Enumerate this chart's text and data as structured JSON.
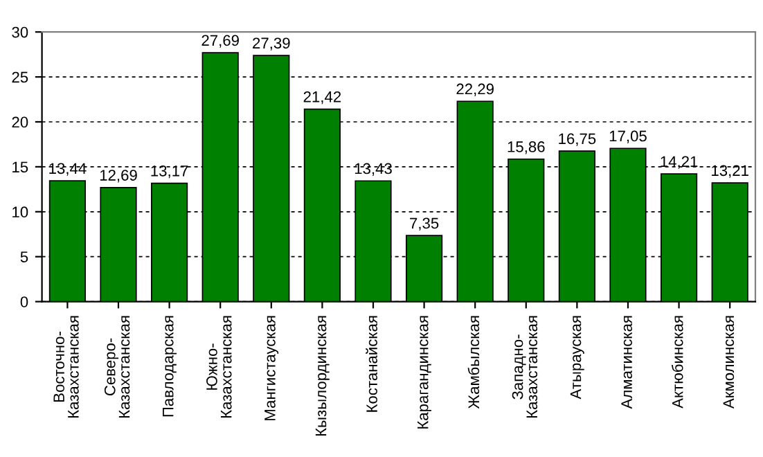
{
  "chart_data": {
    "type": "bar",
    "categories": [
      "Восточно-\nКазахстанская",
      "Северо-\nКазахстанская",
      "Павлодарская",
      "Южно-\nКазахстанская",
      "Мангистауская",
      "Кызылординская",
      "Костанайская",
      "Карагандинская",
      "Жамбылская",
      "Западно-\nКазахстанская",
      "Атырауская",
      "Алматинская",
      "Актюбинская",
      "Акмолинская"
    ],
    "values": [
      13.44,
      12.69,
      13.17,
      27.69,
      27.39,
      21.42,
      13.43,
      7.35,
      22.29,
      15.86,
      16.75,
      17.05,
      14.21,
      13.21
    ],
    "value_labels": [
      "13,44",
      "12,69",
      "13,17",
      "27,69",
      "27,39",
      "21,42",
      "13,43",
      "7,35",
      "22,29",
      "15,86",
      "16,75",
      "17,05",
      "14,21",
      "13,21"
    ],
    "color": "#008000",
    "ylim": [
      0,
      30
    ],
    "yticks": [
      0,
      5,
      10,
      15,
      20,
      25,
      30
    ],
    "grid": "y",
    "legend": false
  }
}
